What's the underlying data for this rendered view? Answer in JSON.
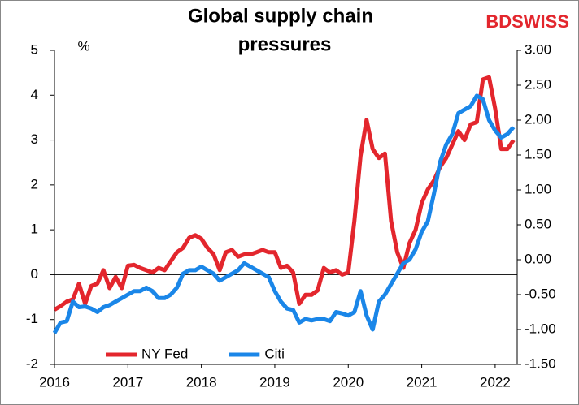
{
  "chart_data": {
    "type": "line",
    "title": [
      "Global supply chain",
      "pressures"
    ],
    "brand": "BDSWISS",
    "ylabel": "%",
    "x": [
      2016,
      2016.083,
      2016.167,
      2016.25,
      2016.333,
      2016.417,
      2016.5,
      2016.583,
      2016.667,
      2016.75,
      2016.833,
      2016.917,
      2017,
      2017.083,
      2017.167,
      2017.25,
      2017.333,
      2017.417,
      2017.5,
      2017.583,
      2017.667,
      2017.75,
      2017.833,
      2017.917,
      2018,
      2018.083,
      2018.167,
      2018.25,
      2018.333,
      2018.417,
      2018.5,
      2018.583,
      2018.667,
      2018.75,
      2018.833,
      2018.917,
      2019,
      2019.083,
      2019.167,
      2019.25,
      2019.333,
      2019.417,
      2019.5,
      2019.583,
      2019.667,
      2019.75,
      2019.833,
      2019.917,
      2020,
      2020.083,
      2020.167,
      2020.25,
      2020.333,
      2020.417,
      2020.5,
      2020.583,
      2020.667,
      2020.75,
      2020.833,
      2020.917,
      2021,
      2021.083,
      2021.167,
      2021.25,
      2021.333,
      2021.417,
      2021.5,
      2021.583,
      2021.667,
      2021.75,
      2021.833,
      2021.917,
      2022,
      2022.083,
      2022.167,
      2022.25
    ],
    "series": [
      {
        "name": "NY Fed",
        "color": "#e3262d",
        "values": [
          -0.78,
          -0.7,
          -0.6,
          -0.55,
          -0.2,
          -0.65,
          -0.25,
          -0.2,
          0.1,
          -0.3,
          -0.05,
          -0.3,
          0.2,
          0.22,
          0.15,
          0.1,
          0.05,
          0.15,
          0.1,
          0.3,
          0.5,
          0.6,
          0.82,
          0.88,
          0.8,
          0.6,
          0.45,
          0.1,
          0.5,
          0.55,
          0.4,
          0.45,
          0.45,
          0.5,
          0.55,
          0.5,
          0.5,
          0.15,
          0.2,
          0.05,
          -0.65,
          -0.45,
          -0.45,
          -0.35,
          0.15,
          0.05,
          0.1,
          0.0,
          0.05,
          1.2,
          2.65,
          3.45,
          2.8,
          2.6,
          2.7,
          1.2,
          0.5,
          0.15,
          0.7,
          1.0,
          1.6,
          1.9,
          2.1,
          2.4,
          2.6,
          2.9,
          3.2,
          3.0,
          3.35,
          3.4,
          4.35,
          4.4,
          3.7,
          2.8,
          2.8,
          3.0
        ]
      },
      {
        "name": "Citi",
        "color": "#1a86e8",
        "axis": "y2",
        "values": [
          -1.05,
          -0.9,
          -0.88,
          -0.6,
          -0.68,
          -0.67,
          -0.7,
          -0.75,
          -0.68,
          -0.65,
          -0.6,
          -0.55,
          -0.5,
          -0.45,
          -0.45,
          -0.4,
          -0.45,
          -0.55,
          -0.55,
          -0.5,
          -0.4,
          -0.2,
          -0.15,
          -0.15,
          -0.1,
          -0.15,
          -0.2,
          -0.3,
          -0.25,
          -0.2,
          -0.15,
          -0.05,
          -0.1,
          -0.15,
          -0.2,
          -0.25,
          -0.45,
          -0.6,
          -0.7,
          -0.72,
          -0.9,
          -0.85,
          -0.87,
          -0.85,
          -0.85,
          -0.88,
          -0.75,
          -0.77,
          -0.8,
          -0.75,
          -0.45,
          -0.8,
          -1.0,
          -0.6,
          -0.5,
          -0.35,
          -0.2,
          -0.05,
          0.0,
          0.15,
          0.4,
          0.55,
          0.95,
          1.4,
          1.65,
          1.8,
          2.1,
          2.15,
          2.2,
          2.35,
          2.3,
          2.0,
          1.85,
          1.75,
          1.8,
          1.9
        ]
      }
    ],
    "xlim": [
      2016,
      2022.3
    ],
    "xticks": [
      2016,
      2017,
      2018,
      2019,
      2020,
      2021,
      2022
    ],
    "ylim": [
      -2,
      5
    ],
    "yticks": [
      -2,
      -1,
      0,
      1,
      2,
      3,
      4,
      5
    ],
    "y2lim": [
      -1.5,
      3
    ],
    "y2ticks": [
      {
        "value": -1.5,
        "label": "-1.50"
      },
      {
        "value": -1,
        "label": "-1.00"
      },
      {
        "value": -0.5,
        "label": "-0.50"
      },
      {
        "value": 0,
        "label": "0.00"
      },
      {
        "value": 0.5,
        "label": "0.50"
      },
      {
        "value": 1,
        "label": "1.00"
      },
      {
        "value": 1.5,
        "label": "1.50"
      },
      {
        "value": 2,
        "label": "2.00"
      },
      {
        "value": 2.5,
        "label": "2.50"
      },
      {
        "value": 3,
        "label": "3.00"
      }
    ],
    "legend": "bottom"
  }
}
